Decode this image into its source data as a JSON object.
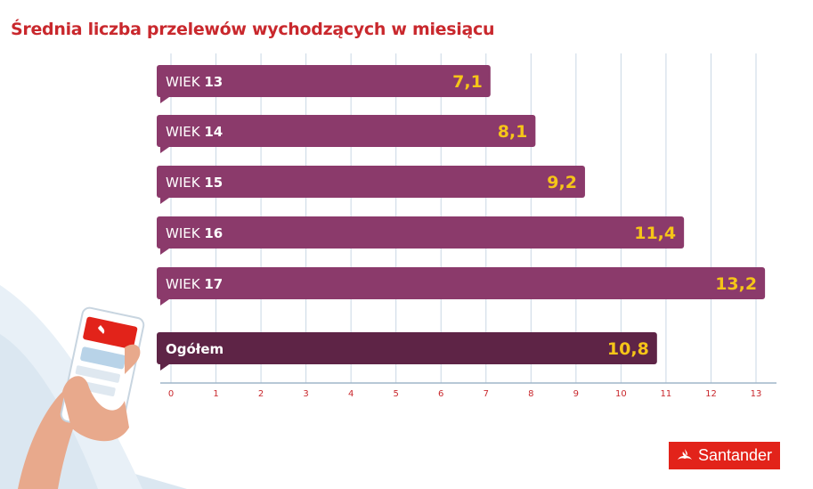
{
  "title": "Średnia liczba przelewów wychodzących w miesiącu",
  "logo_text": "Santander",
  "colors": {
    "title": "#c9282d",
    "bar": "#8b3a6b",
    "bar_total": "#5e2446",
    "value_label": "#f5c518",
    "grid": "#c9d7e4",
    "tick": "#c9282d",
    "brand": "#e2231a"
  },
  "chart_data": {
    "type": "bar",
    "orientation": "horizontal",
    "title": "Średnia liczba przelewów wychodzących w miesiącu",
    "categories": [
      {
        "prefix": "WIEK ",
        "bold": "13"
      },
      {
        "prefix": "WIEK ",
        "bold": "14"
      },
      {
        "prefix": "WIEK ",
        "bold": "15"
      },
      {
        "prefix": "WIEK ",
        "bold": "16"
      },
      {
        "prefix": "WIEK ",
        "bold": "17"
      },
      {
        "prefix": "",
        "bold": "Ogółem"
      }
    ],
    "values": [
      7.1,
      8.1,
      9.2,
      11.4,
      13.2,
      10.8
    ],
    "value_labels": [
      "7,1",
      "8,1",
      "9,2",
      "11,4",
      "13,2",
      "10,8"
    ],
    "highlight_index": 5,
    "xlim": [
      0,
      13
    ],
    "xticks": [
      "0",
      "1",
      "2",
      "3",
      "4",
      "5",
      "6",
      "7",
      "8",
      "9",
      "10",
      "11",
      "12",
      "13"
    ],
    "grid": true,
    "legend": "none"
  }
}
